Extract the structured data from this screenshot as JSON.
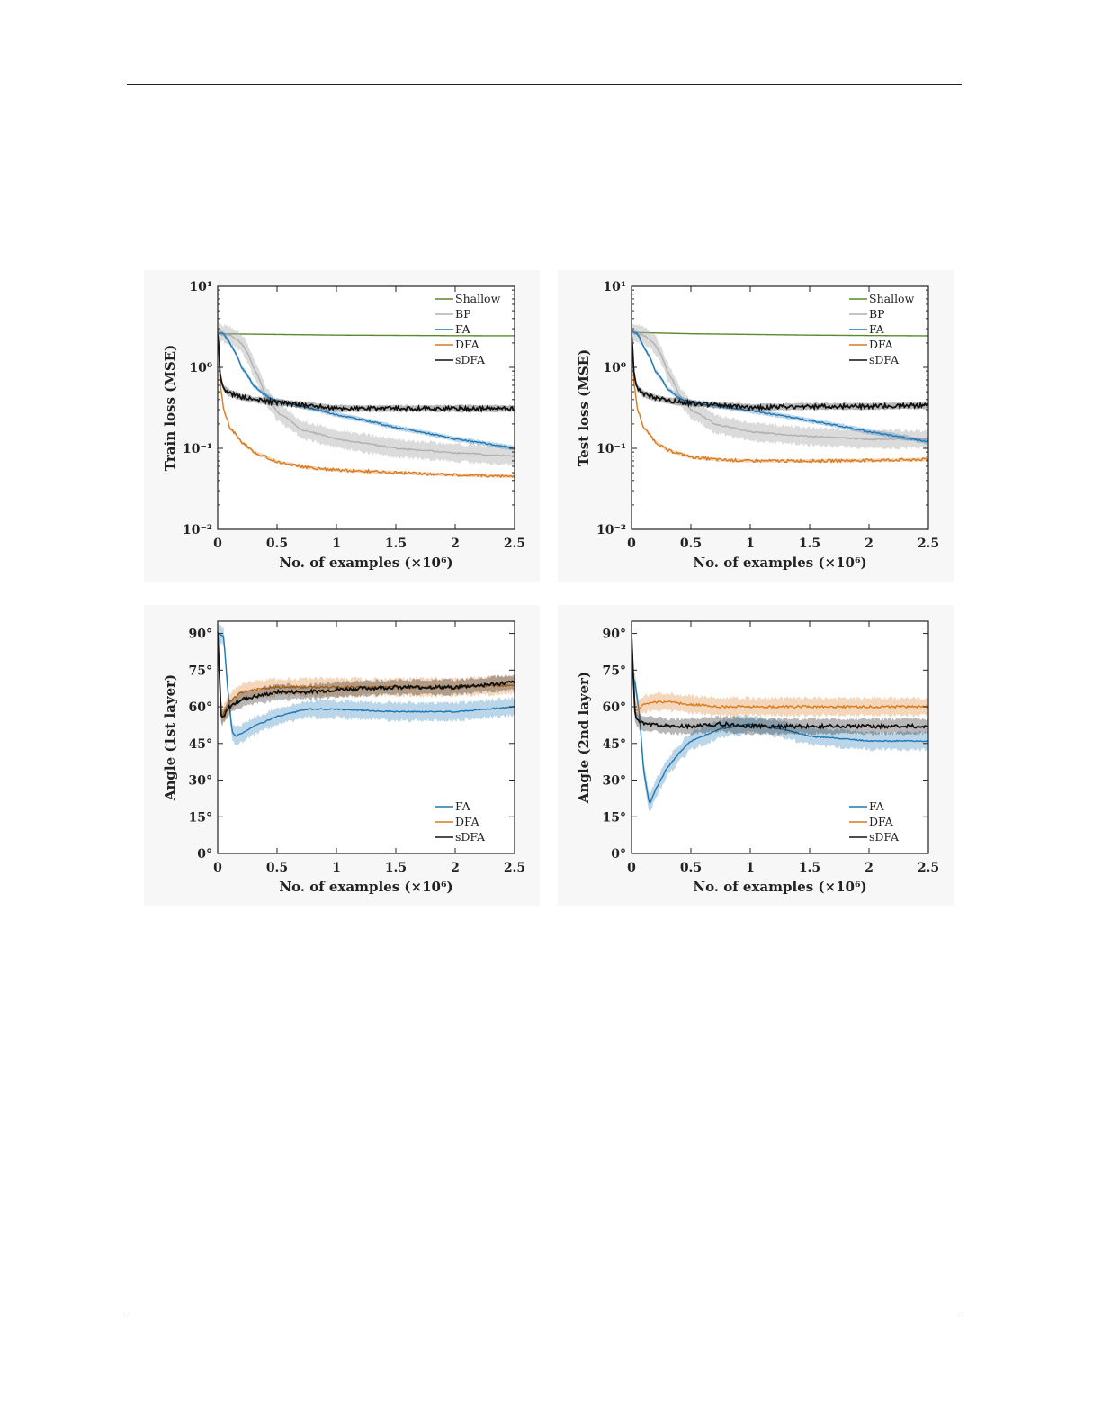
{
  "chart_data": [
    {
      "type": "line",
      "id": "train-loss",
      "xlabel": "No. of examples (×10⁶)",
      "ylabel": "Train loss (MSE)",
      "xlim": [
        0,
        2.5
      ],
      "ylim": [
        0.01,
        10
      ],
      "yscale": "log",
      "xticks": [
        "0",
        "0.5",
        "1",
        "1.5",
        "2",
        "2.5"
      ],
      "yticks": [
        "10⁻²",
        "10⁻¹",
        "10⁰",
        "10¹"
      ],
      "legend_position": "top-right",
      "series": [
        {
          "name": "Shallow",
          "color": "#5a8a2a",
          "x": [
            0,
            0.5,
            1,
            1.5,
            2,
            2.5
          ],
          "y": [
            2.6,
            2.55,
            2.5,
            2.48,
            2.46,
            2.45
          ]
        },
        {
          "name": "BP",
          "color": "#b0b0b0",
          "x": [
            0,
            0.1,
            0.2,
            0.3,
            0.4,
            0.5,
            0.7,
            1,
            1.5,
            2,
            2.5
          ],
          "y": [
            2.7,
            2.5,
            2.0,
            1.0,
            0.45,
            0.28,
            0.17,
            0.13,
            0.1,
            0.088,
            0.08
          ]
        },
        {
          "name": "FA",
          "color": "#1f77b4",
          "x": [
            0,
            0.05,
            0.1,
            0.2,
            0.3,
            0.4,
            0.5,
            0.75,
            1,
            1.5,
            2,
            2.5
          ],
          "y": [
            2.7,
            2.6,
            2.0,
            1.0,
            0.6,
            0.45,
            0.38,
            0.32,
            0.26,
            0.18,
            0.13,
            0.1
          ]
        },
        {
          "name": "DFA",
          "color": "#d97a1e",
          "x": [
            0,
            0.02,
            0.05,
            0.1,
            0.2,
            0.3,
            0.5,
            0.75,
            1,
            1.5,
            2,
            2.5
          ],
          "y": [
            2.7,
            0.6,
            0.3,
            0.18,
            0.12,
            0.09,
            0.068,
            0.058,
            0.054,
            0.05,
            0.047,
            0.045
          ]
        },
        {
          "name": "sDFA",
          "color": "#111111",
          "x": [
            0,
            0.02,
            0.05,
            0.1,
            0.2,
            0.3,
            0.5,
            0.75,
            1,
            1.5,
            2,
            2.5
          ],
          "y": [
            2.7,
            0.8,
            0.55,
            0.48,
            0.43,
            0.4,
            0.37,
            0.34,
            0.31,
            0.31,
            0.31,
            0.31
          ]
        }
      ]
    },
    {
      "type": "line",
      "id": "test-loss",
      "xlabel": "No. of examples (×10⁶)",
      "ylabel": "Test loss (MSE)",
      "xlim": [
        0,
        2.5
      ],
      "ylim": [
        0.01,
        10
      ],
      "yscale": "log",
      "xticks": [
        "0",
        "0.5",
        "1",
        "1.5",
        "2",
        "2.5"
      ],
      "yticks": [
        "10⁻²",
        "10⁻¹",
        "10⁰",
        "10¹"
      ],
      "legend_position": "top-right",
      "series": [
        {
          "name": "Shallow",
          "color": "#5a8a2a",
          "x": [
            0,
            0.5,
            1,
            1.5,
            2,
            2.5
          ],
          "y": [
            2.7,
            2.6,
            2.55,
            2.5,
            2.47,
            2.45
          ]
        },
        {
          "name": "BP",
          "color": "#b0b0b0",
          "x": [
            0,
            0.1,
            0.2,
            0.3,
            0.4,
            0.5,
            0.7,
            1,
            1.5,
            2,
            2.5
          ],
          "y": [
            2.7,
            2.5,
            1.9,
            0.9,
            0.45,
            0.3,
            0.2,
            0.16,
            0.14,
            0.13,
            0.13
          ]
        },
        {
          "name": "FA",
          "color": "#1f77b4",
          "x": [
            0,
            0.05,
            0.1,
            0.2,
            0.3,
            0.4,
            0.5,
            0.75,
            1,
            1.5,
            2,
            2.5
          ],
          "y": [
            2.8,
            2.6,
            1.8,
            0.9,
            0.55,
            0.42,
            0.37,
            0.33,
            0.29,
            0.22,
            0.16,
            0.12
          ]
        },
        {
          "name": "DFA",
          "color": "#d97a1e",
          "x": [
            0,
            0.02,
            0.05,
            0.1,
            0.2,
            0.3,
            0.5,
            0.75,
            1,
            1.5,
            2,
            2.5
          ],
          "y": [
            2.7,
            0.6,
            0.3,
            0.18,
            0.12,
            0.095,
            0.078,
            0.072,
            0.07,
            0.07,
            0.071,
            0.073
          ]
        },
        {
          "name": "sDFA",
          "color": "#111111",
          "x": [
            0,
            0.02,
            0.05,
            0.1,
            0.2,
            0.3,
            0.5,
            0.75,
            1,
            1.5,
            2,
            2.5
          ],
          "y": [
            2.7,
            0.8,
            0.55,
            0.47,
            0.42,
            0.39,
            0.36,
            0.34,
            0.32,
            0.33,
            0.33,
            0.34
          ]
        }
      ]
    },
    {
      "type": "line",
      "id": "angle-1st",
      "xlabel": "No. of examples (×10⁶)",
      "ylabel": "Angle (1st layer)",
      "xlim": [
        0,
        2.5
      ],
      "ylim": [
        0,
        95
      ],
      "yscale": "linear",
      "xticks": [
        "0",
        "0.5",
        "1",
        "1.5",
        "2",
        "2.5"
      ],
      "yticks": [
        "0°",
        "15°",
        "30°",
        "45°",
        "60°",
        "75°",
        "90°"
      ],
      "legend_position": "bottom-right",
      "series": [
        {
          "name": "FA",
          "color": "#1f77b4",
          "x": [
            0,
            0.05,
            0.08,
            0.12,
            0.15,
            0.2,
            0.3,
            0.5,
            0.75,
            1,
            1.5,
            2,
            2.5
          ],
          "y": [
            90,
            89,
            70,
            50,
            48,
            49,
            52,
            56,
            59,
            59,
            58,
            58,
            60
          ]
        },
        {
          "name": "DFA",
          "color": "#d97a1e",
          "x": [
            0,
            0.03,
            0.06,
            0.1,
            0.2,
            0.3,
            0.5,
            0.75,
            1,
            1.5,
            2,
            2.5
          ],
          "y": [
            90,
            56,
            58,
            62,
            66,
            67,
            68,
            68,
            68,
            68,
            68,
            69
          ]
        },
        {
          "name": "sDFA",
          "color": "#111111",
          "x": [
            0,
            0.03,
            0.06,
            0.1,
            0.2,
            0.3,
            0.5,
            0.75,
            1,
            1.5,
            2,
            2.5
          ],
          "y": [
            90,
            55,
            57,
            60,
            63,
            64,
            66,
            66,
            67,
            68,
            68,
            70
          ]
        }
      ]
    },
    {
      "type": "line",
      "id": "angle-2nd",
      "xlabel": "No. of examples (×10⁶)",
      "ylabel": "Angle (2nd layer)",
      "xlim": [
        0,
        2.5
      ],
      "ylim": [
        0,
        95
      ],
      "yscale": "linear",
      "xticks": [
        "0",
        "0.5",
        "1",
        "1.5",
        "2",
        "2.5"
      ],
      "yticks": [
        "0°",
        "15°",
        "30°",
        "45°",
        "60°",
        "75°",
        "90°"
      ],
      "legend_position": "bottom-right",
      "series": [
        {
          "name": "FA",
          "color": "#1f77b4",
          "x": [
            0,
            0.03,
            0.07,
            0.1,
            0.15,
            0.2,
            0.3,
            0.4,
            0.5,
            0.75,
            1,
            1.25,
            1.5,
            2,
            2.5
          ],
          "y": [
            73,
            70,
            55,
            35,
            20,
            26,
            35,
            41,
            46,
            51,
            53,
            51,
            48,
            46,
            46
          ]
        },
        {
          "name": "DFA",
          "color": "#d97a1e",
          "x": [
            0,
            0.03,
            0.06,
            0.1,
            0.2,
            0.3,
            0.5,
            0.75,
            1,
            1.5,
            2,
            2.5
          ],
          "y": [
            90,
            58,
            59,
            61,
            62,
            62,
            61,
            60,
            60,
            60,
            60,
            60
          ]
        },
        {
          "name": "sDFA",
          "color": "#111111",
          "x": [
            0,
            0.03,
            0.06,
            0.1,
            0.2,
            0.3,
            0.5,
            0.75,
            1,
            1.5,
            2,
            2.5
          ],
          "y": [
            90,
            56,
            54,
            53,
            53,
            52,
            52,
            53,
            52,
            52,
            52,
            52
          ]
        }
      ]
    }
  ]
}
